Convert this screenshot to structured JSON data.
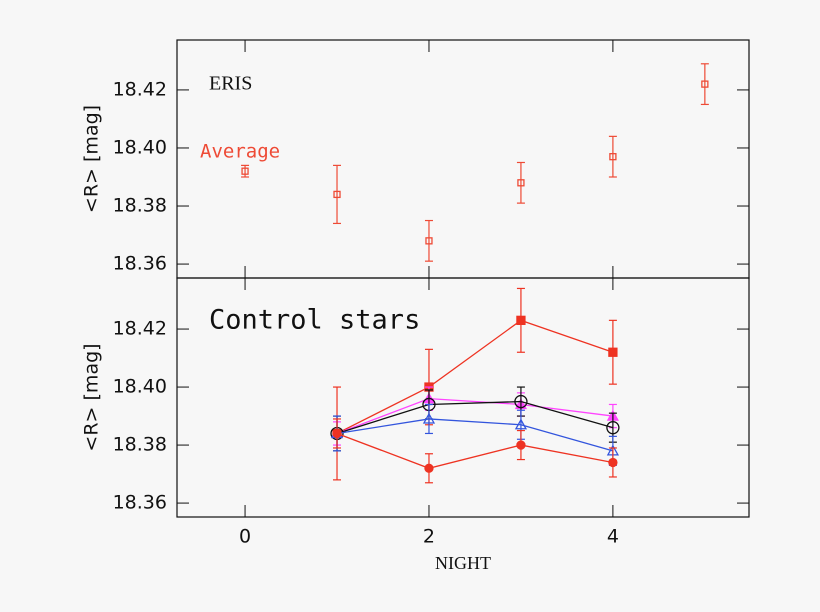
{
  "chart_data": [
    {
      "type": "scatter",
      "annotation": "ERIS",
      "ylabel": "<R> [mag]",
      "xlim": [
        -0.74,
        5.48
      ],
      "xticks": [
        0,
        2,
        4
      ],
      "show_xtick_labels": false,
      "ylim": [
        18.3552,
        18.4372
      ],
      "yticks": [
        18.36,
        18.38,
        {
          "value": 18.4,
          "label": "18.40"
        },
        18.42
      ],
      "legend": "upper left",
      "series": [
        {
          "name": "Average",
          "color": "#ee4a35",
          "marker": "open-square",
          "x": [
            0,
            1,
            2,
            3,
            4,
            5
          ],
          "values": [
            18.392,
            18.384,
            18.368,
            18.388,
            18.397,
            18.422
          ],
          "errors": [
            0.002,
            0.01,
            0.007,
            0.007,
            0.007,
            0.007
          ]
        }
      ]
    },
    {
      "type": "line",
      "annotation": "Control stars",
      "ylabel": "<R> [mag]",
      "xlabel": "NIGHT",
      "xlim": [
        -0.74,
        5.48
      ],
      "xticks": [
        0,
        2,
        4
      ],
      "show_xtick_labels": true,
      "ylim": [
        18.3552,
        18.4376
      ],
      "yticks": [
        18.36,
        18.38,
        {
          "value": 18.4,
          "label": "18.40"
        },
        18.42
      ],
      "series": [
        {
          "color": "#ee3322",
          "marker": "filled-square",
          "x": [
            1,
            2,
            3,
            4
          ],
          "values": [
            18.384,
            18.4,
            18.423,
            18.412
          ],
          "errors": [
            0.016,
            0.013,
            0.011,
            0.011
          ]
        },
        {
          "color": "#ff44ff",
          "marker": "filled-triangle",
          "x": [
            1,
            2,
            3,
            4
          ],
          "values": [
            18.384,
            18.396,
            18.394,
            18.39
          ],
          "errors": [
            0.004,
            0.004,
            0.004,
            0.004
          ]
        },
        {
          "color": "#111111",
          "marker": "open-circle",
          "x": [
            1,
            2,
            3,
            4
          ],
          "values": [
            18.384,
            18.394,
            18.395,
            18.386
          ],
          "errors": [
            0.006,
            0.005,
            0.005,
            0.005
          ]
        },
        {
          "color": "#3355dd",
          "marker": "open-triangle",
          "x": [
            1,
            2,
            3,
            4
          ],
          "values": [
            18.384,
            18.389,
            18.387,
            18.378
          ],
          "errors": [
            0.006,
            0.005,
            0.005,
            0.005
          ]
        },
        {
          "color": "#ee3322",
          "marker": "filled-circle",
          "x": [
            1,
            2,
            3,
            4
          ],
          "values": [
            18.384,
            18.372,
            18.38,
            18.374
          ],
          "errors": [
            0.005,
            0.005,
            0.005,
            0.005
          ]
        }
      ]
    }
  ]
}
